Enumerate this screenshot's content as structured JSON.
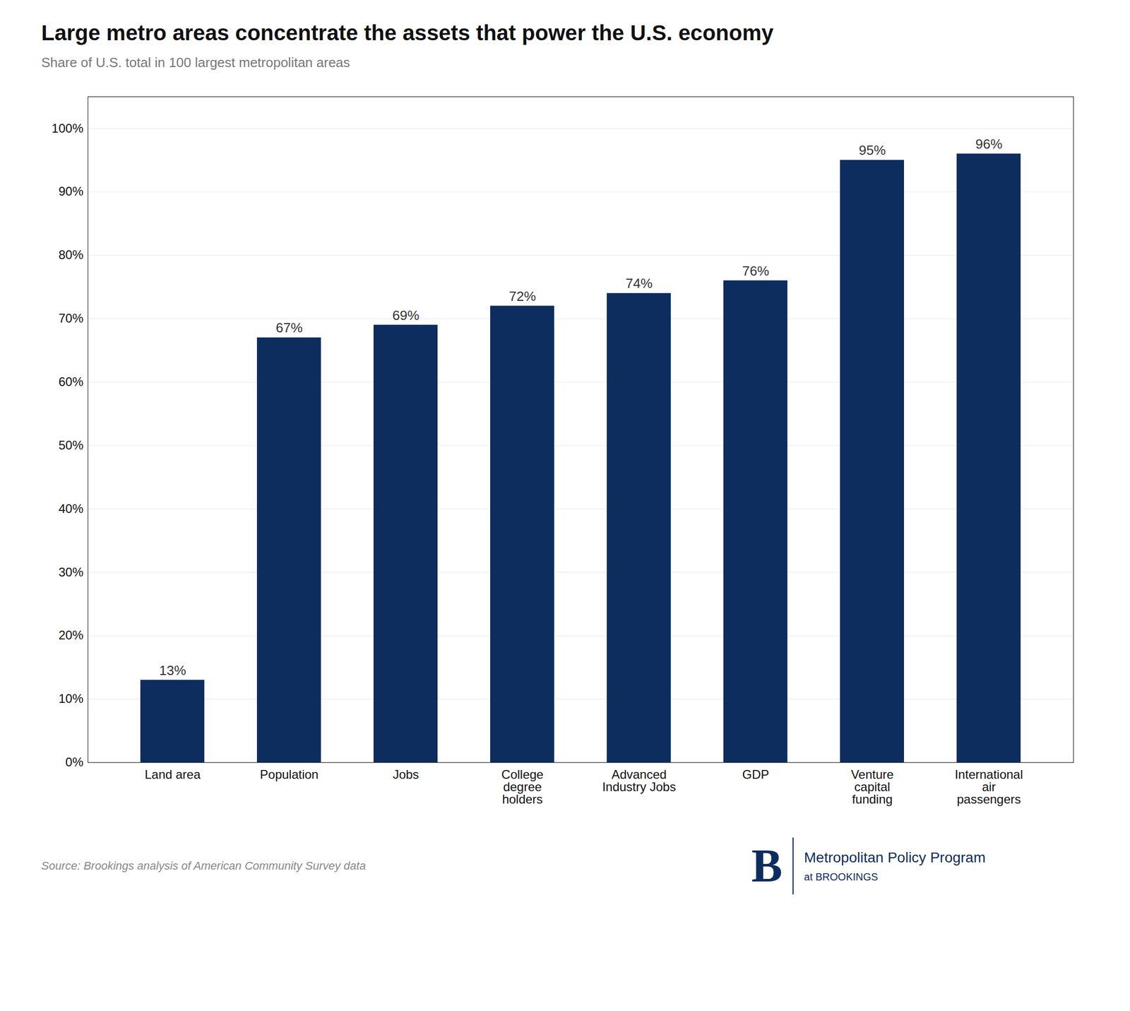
{
  "chart_data": {
    "type": "bar",
    "title": "Large metro areas concentrate the assets that power the U.S. economy",
    "subtitle": "Share of U.S. total in 100 largest metropolitan areas",
    "source": "Source: Brookings analysis of American Community Survey data",
    "annotations": [
      "B",
      "Metropolitan Policy Program",
      "at BROOKINGS"
    ],
    "categories": [
      "Land area",
      "Population",
      "Jobs",
      "College\ndegree\nholders",
      "Advanced\nIndustry Jobs",
      "GDP",
      "Venture\ncapital\nfunding",
      "International\nair\npassengers"
    ],
    "values": [
      13,
      67,
      69,
      72,
      74,
      76,
      95,
      96
    ],
    "value_labels": [
      "13%",
      "67%",
      "69%",
      "72%",
      "74%",
      "76%",
      "95%",
      "96%"
    ],
    "data_labels": true,
    "color": "#0d2d5e",
    "ylim": [
      0,
      105
    ],
    "yticks": [
      {
        "value": 0,
        "label": "0%"
      },
      {
        "value": 10,
        "label": "10%"
      },
      {
        "value": 20,
        "label": "20%"
      },
      {
        "value": 30,
        "label": "30%"
      },
      {
        "value": 40,
        "label": "40%"
      },
      {
        "value": 50,
        "label": "50%"
      },
      {
        "value": 60,
        "label": "60%"
      },
      {
        "value": 70,
        "label": "70%"
      },
      {
        "value": 80,
        "label": "80%"
      },
      {
        "value": 90,
        "label": "90%"
      },
      {
        "value": 100,
        "label": "100%"
      }
    ],
    "grid": true
  }
}
